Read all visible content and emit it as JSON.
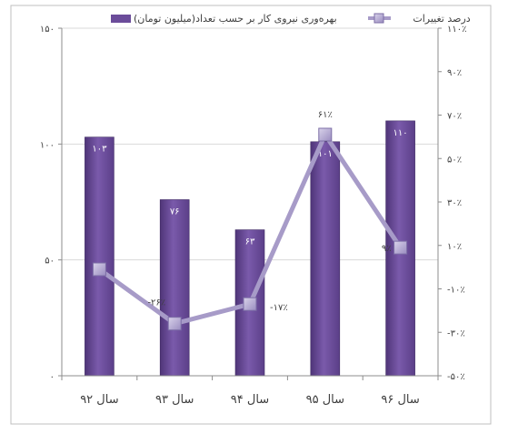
{
  "chart_data": {
    "type": "bar",
    "categories": [
      "سال ۹۲",
      "سال ۹۳",
      "سال ۹۴",
      "سال ۹۵",
      "سال ۹۶"
    ],
    "series": [
      {
        "name": "بهره‌وری نیروی کار بر حسب تعداد(میلیون تومان)",
        "type": "bar",
        "axis": "left",
        "values": [
          103,
          76,
          63,
          101,
          110
        ],
        "labels": [
          "۱۰۳",
          "۷۶",
          "۶۳",
          "۱۰۱",
          "۱۱۰"
        ],
        "color": "#6b4c9a"
      },
      {
        "name": "درصد تغییرات",
        "type": "line",
        "axis": "right",
        "values": [
          -1,
          -26,
          -17,
          61,
          9
        ],
        "labels": [
          "",
          "-۲۶٪",
          "-۱۷٪",
          "۶۱٪",
          "۹٪"
        ],
        "color": "#a79bc8"
      }
    ],
    "y_left": {
      "range": [
        0,
        150
      ],
      "ticks": [
        0,
        50,
        100,
        150
      ],
      "tick_labels": [
        "۰",
        "۵۰",
        "۱۰۰",
        "۱۵۰"
      ]
    },
    "y_right": {
      "range": [
        -50,
        110
      ],
      "ticks": [
        -50,
        -30,
        -10,
        10,
        30,
        50,
        70,
        90,
        110
      ],
      "tick_labels": [
        "-۵۰٪",
        "-۳۰٪",
        "-۱۰٪",
        "۱۰٪",
        "۳۰٪",
        "۵۰٪",
        "۷۰٪",
        "۹۰٪",
        "۱۱۰٪"
      ]
    },
    "grid": "horizontal",
    "legend": "top"
  }
}
